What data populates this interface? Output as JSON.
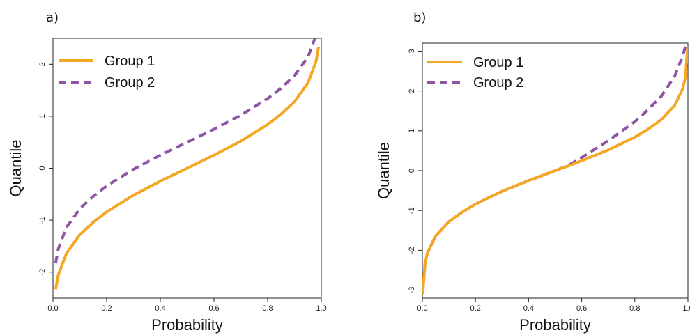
{
  "chart_data": [
    {
      "panel_label": "a)",
      "type": "line",
      "xlabel": "Probability",
      "ylabel": "Quantile",
      "xlim": [
        0,
        1
      ],
      "ylim": [
        -2.5,
        2.5
      ],
      "xticks": [
        "0.0",
        "0.2",
        "0.4",
        "0.6",
        "0.8",
        "1.0"
      ],
      "yticks": [
        "-2",
        "-1",
        "0",
        "1",
        "2"
      ],
      "legend_position": "top-left",
      "grid": false,
      "series": [
        {
          "name": "Group 1",
          "color": "#F5A623",
          "dash": "solid",
          "x": [
            0.01,
            0.02,
            0.05,
            0.1,
            0.15,
            0.2,
            0.3,
            0.4,
            0.5,
            0.6,
            0.7,
            0.8,
            0.85,
            0.9,
            0.95,
            0.98,
            0.99
          ],
          "y": [
            -2.33,
            -2.05,
            -1.64,
            -1.28,
            -1.04,
            -0.84,
            -0.52,
            -0.25,
            0.0,
            0.25,
            0.52,
            0.84,
            1.04,
            1.28,
            1.64,
            2.05,
            2.33
          ]
        },
        {
          "name": "Group 2",
          "color": "#8E55A6",
          "dash": "dashed",
          "x": [
            0.01,
            0.02,
            0.05,
            0.1,
            0.15,
            0.2,
            0.3,
            0.4,
            0.5,
            0.6,
            0.7,
            0.8,
            0.85,
            0.9,
            0.95,
            0.98,
            0.99
          ],
          "y": [
            -1.83,
            -1.55,
            -1.14,
            -0.78,
            -0.54,
            -0.34,
            -0.02,
            0.25,
            0.5,
            0.75,
            1.02,
            1.34,
            1.54,
            1.78,
            2.14,
            2.55,
            2.83
          ]
        }
      ]
    },
    {
      "panel_label": "b)",
      "type": "line",
      "xlabel": "Probability",
      "ylabel": "Quantile",
      "xlim": [
        0,
        1
      ],
      "ylim": [
        -3.2,
        3.2
      ],
      "xticks": [
        "0.0",
        "0.2",
        "0.4",
        "0.6",
        "0.8",
        "1.0"
      ],
      "yticks": [
        "-3",
        "-2",
        "-1",
        "0",
        "1",
        "2",
        "3"
      ],
      "legend_position": "top-left",
      "grid": false,
      "series": [
        {
          "name": "Group 1",
          "color": "#F5A623",
          "dash": "solid",
          "x": [
            0.001,
            0.01,
            0.02,
            0.05,
            0.1,
            0.15,
            0.2,
            0.3,
            0.4,
            0.5,
            0.55,
            0.6,
            0.7,
            0.8,
            0.85,
            0.9,
            0.95,
            0.98,
            0.99,
            0.999
          ],
          "y": [
            -3.09,
            -2.33,
            -2.05,
            -1.64,
            -1.28,
            -1.04,
            -0.84,
            -0.52,
            -0.25,
            0.0,
            0.12,
            0.25,
            0.52,
            0.84,
            1.04,
            1.28,
            1.64,
            2.05,
            2.33,
            3.09
          ]
        },
        {
          "name": "Group 2",
          "color": "#8E55A6",
          "dash": "dashed",
          "x": [
            0.001,
            0.01,
            0.02,
            0.05,
            0.1,
            0.15,
            0.2,
            0.3,
            0.4,
            0.5,
            0.55,
            0.6,
            0.7,
            0.8,
            0.85,
            0.9,
            0.95,
            0.98,
            0.99,
            0.999
          ],
          "y": [
            -3.09,
            -2.33,
            -2.05,
            -1.64,
            -1.28,
            -1.04,
            -0.84,
            -0.52,
            -0.25,
            0.0,
            0.13,
            0.33,
            0.75,
            1.23,
            1.53,
            1.87,
            2.37,
            2.88,
            3.1,
            3.2
          ]
        }
      ]
    }
  ]
}
